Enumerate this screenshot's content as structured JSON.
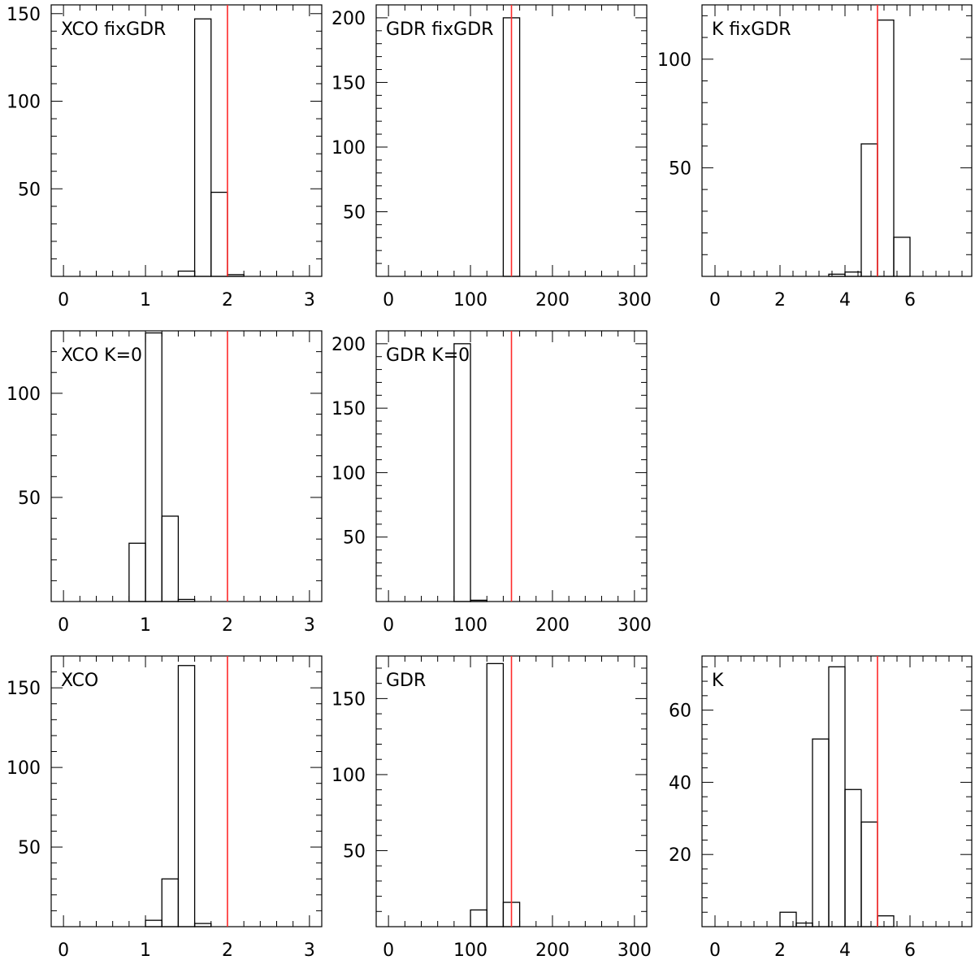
{
  "figure": {
    "ref_line_color": "#ff2a2a",
    "hist_color": "#000000"
  },
  "chart_data": [
    {
      "type": "histogram",
      "label": "XCO fixGDR",
      "xlim": [
        -0.15,
        3.15
      ],
      "ylim": [
        0,
        155
      ],
      "xticks": [
        0,
        1,
        2,
        3
      ],
      "yticks": [
        50,
        100,
        150
      ],
      "bins": [
        [
          1.4,
          1.6,
          3
        ],
        [
          1.6,
          1.8,
          147
        ],
        [
          1.8,
          2.0,
          48
        ],
        [
          2.0,
          2.2,
          1
        ]
      ],
      "ref_value": 2
    },
    {
      "type": "histogram",
      "label": "GDR fixGDR",
      "xlim": [
        -15,
        315
      ],
      "ylim": [
        0,
        210
      ],
      "xticks": [
        0,
        100,
        200,
        300
      ],
      "yticks": [
        50,
        100,
        150,
        200
      ],
      "bins": [
        [
          140,
          160,
          200
        ]
      ],
      "ref_value": 150
    },
    {
      "type": "histogram",
      "label": "K fixGDR",
      "xlim": [
        -0.4,
        7.9
      ],
      "ylim": [
        0,
        125
      ],
      "xticks": [
        0,
        2,
        4,
        6
      ],
      "yticks": [
        50,
        100
      ],
      "bins": [
        [
          3.5,
          4.0,
          1
        ],
        [
          4.0,
          4.5,
          2
        ],
        [
          4.5,
          5.0,
          61
        ],
        [
          5.0,
          5.5,
          118
        ],
        [
          5.5,
          6.0,
          18
        ]
      ],
      "ref_value": 5
    },
    {
      "type": "histogram",
      "label": "XCO K=0",
      "xlim": [
        -0.15,
        3.15
      ],
      "ylim": [
        0,
        130
      ],
      "xticks": [
        0,
        1,
        2,
        3
      ],
      "yticks": [
        50,
        100
      ],
      "bins": [
        [
          0.8,
          1.0,
          28
        ],
        [
          1.0,
          1.2,
          129
        ],
        [
          1.2,
          1.4,
          41
        ],
        [
          1.4,
          1.6,
          1
        ]
      ],
      "ref_value": 2
    },
    {
      "type": "histogram",
      "label": "GDR K=0",
      "xlim": [
        -15,
        315
      ],
      "ylim": [
        0,
        210
      ],
      "xticks": [
        0,
        100,
        200,
        300
      ],
      "yticks": [
        50,
        100,
        150,
        200
      ],
      "bins": [
        [
          80,
          100,
          200
        ],
        [
          100,
          120,
          1
        ]
      ],
      "ref_value": 150
    },
    {
      "type": "histogram",
      "label": "XCO",
      "xlim": [
        -0.15,
        3.15
      ],
      "ylim": [
        0,
        170
      ],
      "xticks": [
        0,
        1,
        2,
        3
      ],
      "yticks": [
        50,
        100,
        150
      ],
      "bins": [
        [
          1.0,
          1.2,
          4
        ],
        [
          1.2,
          1.4,
          30
        ],
        [
          1.4,
          1.6,
          164
        ],
        [
          1.6,
          1.8,
          2
        ]
      ],
      "ref_value": 2
    },
    {
      "type": "histogram",
      "label": "GDR",
      "xlim": [
        -15,
        315
      ],
      "ylim": [
        0,
        178
      ],
      "xticks": [
        0,
        100,
        200,
        300
      ],
      "yticks": [
        50,
        100,
        150
      ],
      "bins": [
        [
          100,
          120,
          11
        ],
        [
          120,
          140,
          173
        ],
        [
          140,
          160,
          16
        ]
      ],
      "ref_value": 150
    },
    {
      "type": "histogram",
      "label": "K",
      "xlim": [
        -0.4,
        7.9
      ],
      "ylim": [
        0,
        75
      ],
      "xticks": [
        0,
        2,
        4,
        6
      ],
      "yticks": [
        20,
        40,
        60
      ],
      "bins": [
        [
          2.0,
          2.5,
          4
        ],
        [
          2.5,
          3.0,
          1
        ],
        [
          3.0,
          3.5,
          52
        ],
        [
          3.5,
          4.0,
          72
        ],
        [
          4.0,
          4.5,
          38
        ],
        [
          4.5,
          5.0,
          29
        ],
        [
          5.0,
          5.5,
          3
        ]
      ],
      "ref_value": 5
    }
  ]
}
